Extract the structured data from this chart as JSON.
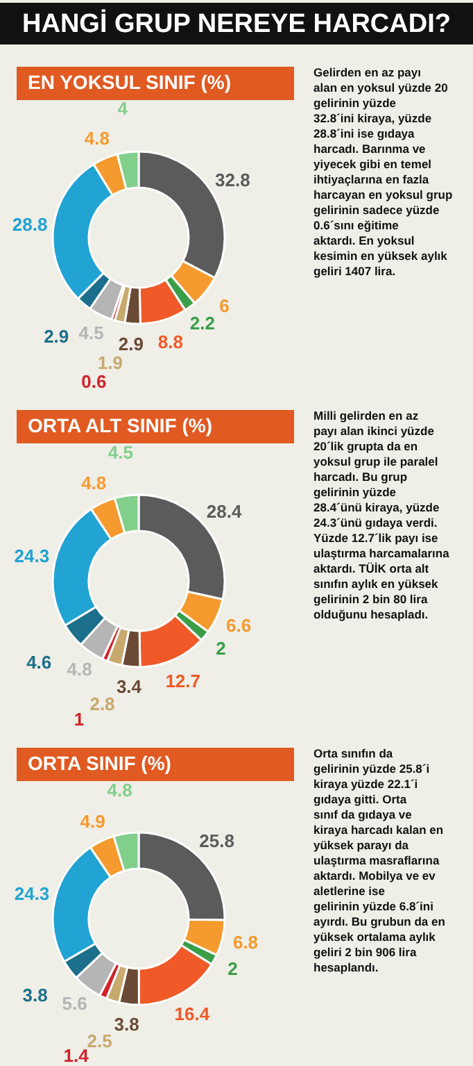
{
  "chart_data": [
    {
      "type": "donut",
      "title": "HANGİ GRUP NEREYE HARCADI?",
      "subtitle": "EN YOKSUL SINIF (%)",
      "categories": [
        null,
        null,
        null,
        null,
        null,
        null,
        null,
        null,
        null,
        null,
        null,
        null
      ],
      "values": [
        32.8,
        6,
        2.2,
        8.8,
        2.9,
        1.9,
        0.6,
        4.5,
        2.9,
        28.8,
        4.8,
        4
      ],
      "colors": [
        "#5b5b5b",
        "#f59a2e",
        "#3a9e48",
        "#ef5a28",
        "#6b4a35",
        "#c8a96e",
        "#d2232a",
        "#b5b5b5",
        "#1b6f8a",
        "#21a3d3",
        "#f59a2e",
        "#82cf8c"
      ],
      "data_labels": true,
      "annotations": [
        "Gelirden en az payı alan en yoksul yüzde 20 gelirinin yüzde 32.8´ini kiraya, yüzde 28.8´ini ise gıdaya harcadı. Barınma ve yiyecek gibi en temel ihtiyaçlarına en fazla harcayan en yoksul grup gelirinin sadece yüzde 0.6´sını eğitime aktardı. En yoksul kesimin en yüksek aylık geliri 1407 lira."
      ]
    },
    {
      "type": "donut",
      "subtitle": "ORTA ALT SINIF (%)",
      "categories": [
        null,
        null,
        null,
        null,
        null,
        null,
        null,
        null,
        null,
        null,
        null,
        null
      ],
      "values": [
        28.4,
        6.6,
        2,
        12.7,
        3.4,
        2.8,
        1,
        4.8,
        4.6,
        24.3,
        4.8,
        4.5
      ],
      "colors": [
        "#5b5b5b",
        "#f59a2e",
        "#3a9e48",
        "#ef5a28",
        "#6b4a35",
        "#c8a96e",
        "#d2232a",
        "#b5b5b5",
        "#1b6f8a",
        "#21a3d3",
        "#f59a2e",
        "#82cf8c"
      ],
      "data_labels": true,
      "annotations": [
        "Milli gelirden en az payı alan ikinci yüzde 20´lik grupta da en yoksul grup ile paralel harcadı. Bu grup gelirinin yüzde 28.4´ünü kiraya, yüzde 24.3´ünü gıdaya verdi. Yüzde 12.7´lik payı ise ulaştırma harcamalarına aktardı. TÜİK orta alt sınıfın aylık en yüksek gelirinin 2 bin 80 lira olduğunu hesapladı."
      ]
    },
    {
      "type": "donut",
      "subtitle": "ORTA SINIF (%)",
      "categories": [
        null,
        null,
        null,
        null,
        null,
        null,
        null,
        null,
        null,
        null,
        null,
        null
      ],
      "values": [
        25.8,
        6.8,
        2,
        16.4,
        3.8,
        2.5,
        1.4,
        5.6,
        3.8,
        24.3,
        4.9,
        4.8
      ],
      "colors": [
        "#5b5b5b",
        "#f59a2e",
        "#3a9e48",
        "#ef5a28",
        "#6b4a35",
        "#c8a96e",
        "#d2232a",
        "#b5b5b5",
        "#1b6f8a",
        "#21a3d3",
        "#f59a2e",
        "#82cf8c"
      ],
      "data_labels": true,
      "annotations": [
        "Orta sınıfın da gelirinin yüzde 25.8´i kiraya yüzde 22.1´i gıdaya gitti. Orta sınıf da gıdaya ve kiraya harcadı kalan en yüksek parayı da ulaştırma masraflarına aktardı. Mobilya ve ev aletlerine ise gelirinin yüzde 6.8´ini ayırdı. Bu grubun da en yüksek ortalama aylık geliri 2 bin 906 lira hesaplandı."
      ]
    }
  ]
}
